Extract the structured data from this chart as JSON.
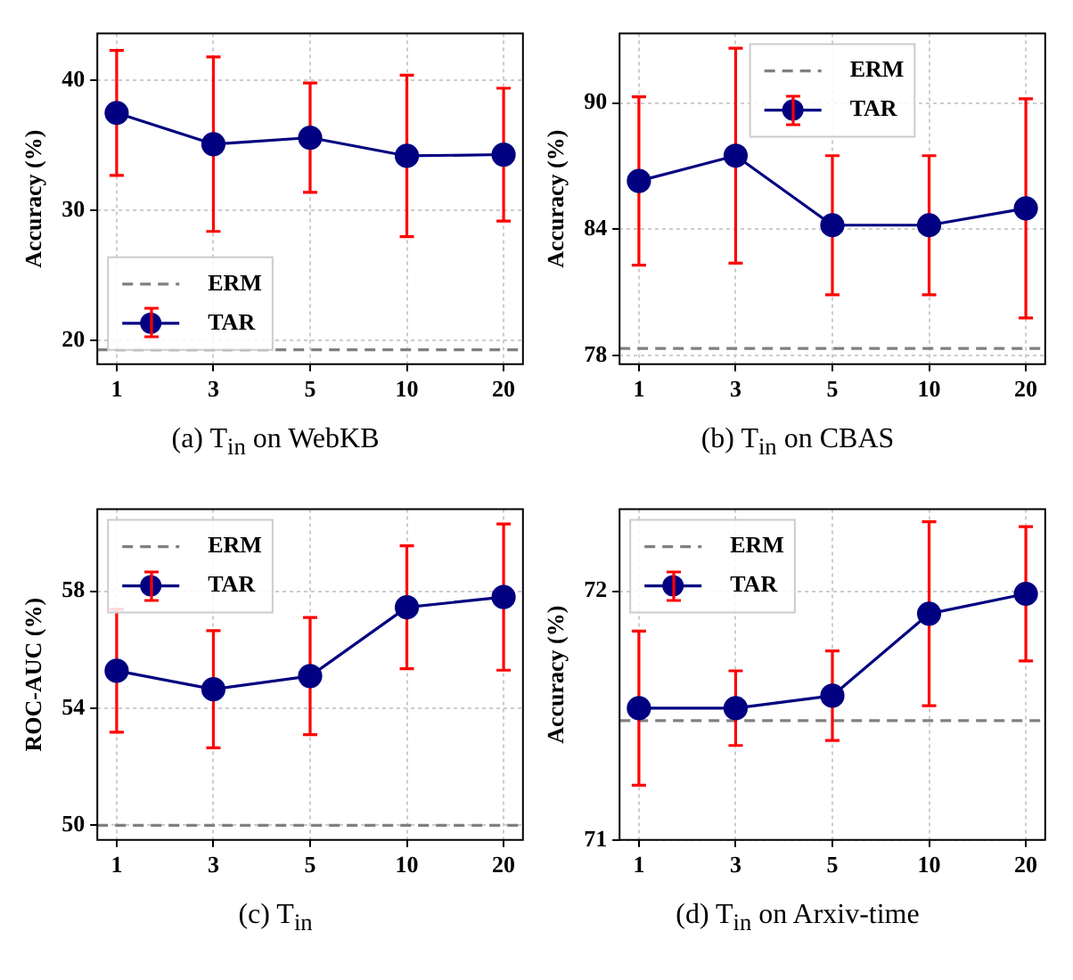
{
  "chart_data": [
    {
      "type": "line",
      "title": "(a) T$_{in}$ on WebKB",
      "ylabel": "Accuracy (%)",
      "categories": [
        "1",
        "3",
        "5",
        "10",
        "20"
      ],
      "ylim": [
        18.2,
        43.6
      ],
      "yticks": [
        20,
        30,
        40
      ],
      "grid": true,
      "legend": "bottom left",
      "marker": "circle",
      "line_style": "solid",
      "series": [
        {
          "name": "TAR",
          "color": "#000080",
          "values": [
            37.5,
            35.1,
            35.6,
            34.2,
            34.3
          ],
          "errors": [
            4.8,
            6.7,
            4.2,
            6.2,
            5.1
          ]
        }
      ],
      "ref_lines": [
        {
          "axis": "y",
          "value": 19.3,
          "label": "ERM",
          "color": "#808080",
          "line_style": "dashed"
        }
      ]
    },
    {
      "type": "line",
      "title": "(b) T$_{in}$ on CBAS",
      "ylabel": "Accuracy (%)",
      "categories": [
        "1",
        "3",
        "5",
        "10",
        "20"
      ],
      "ylim": [
        77.6,
        93.3
      ],
      "yticks": [
        78,
        84,
        90
      ],
      "grid": true,
      "legend": "top",
      "marker": "circle",
      "line_style": "solid",
      "series": [
        {
          "name": "TAR",
          "color": "#000080",
          "values": [
            86.3,
            87.5,
            84.2,
            84.2,
            85.0
          ],
          "errors": [
            4.0,
            5.1,
            3.3,
            3.3,
            5.2
          ]
        }
      ],
      "ref_lines": [
        {
          "axis": "y",
          "value": 78.35,
          "label": "ERM",
          "color": "#808080",
          "line_style": "dashed"
        }
      ]
    },
    {
      "type": "line",
      "title": "(c) T$_{in}$",
      "ylabel": "ROC-AUC (%)",
      "categories": [
        "1",
        "3",
        "5",
        "10",
        "20"
      ],
      "ylim": [
        49.5,
        60.8
      ],
      "yticks": [
        50,
        54,
        58
      ],
      "grid": true,
      "legend": "top left",
      "marker": "circle",
      "line_style": "solid",
      "series": [
        {
          "name": "TAR",
          "color": "#000080",
          "values": [
            55.28,
            54.65,
            55.1,
            57.45,
            57.8
          ],
          "errors": [
            2.1,
            2.0,
            2.0,
            2.1,
            2.5
          ]
        }
      ],
      "ref_lines": [
        {
          "axis": "y",
          "value": 50.0,
          "label": "ERM",
          "color": "#808080",
          "line_style": "dashed"
        }
      ]
    },
    {
      "type": "line",
      "title": "(d) T$_{in}$ on Arxiv-time",
      "ylabel": "Accuracy (%)",
      "categories": [
        "1",
        "3",
        "5",
        "10",
        "20"
      ],
      "ylim": [
        71.0,
        72.33
      ],
      "yticks": [
        71,
        72
      ],
      "grid": true,
      "legend": "top left",
      "marker": "circle",
      "line_style": "solid",
      "series": [
        {
          "name": "TAR",
          "color": "#000080",
          "values": [
            71.53,
            71.53,
            71.58,
            71.91,
            71.99
          ],
          "errors": [
            0.31,
            0.15,
            0.18,
            0.37,
            0.27
          ]
        }
      ],
      "ref_lines": [
        {
          "axis": "y",
          "value": 71.48,
          "label": "ERM",
          "color": "#808080",
          "line_style": "dashed"
        }
      ]
    }
  ]
}
